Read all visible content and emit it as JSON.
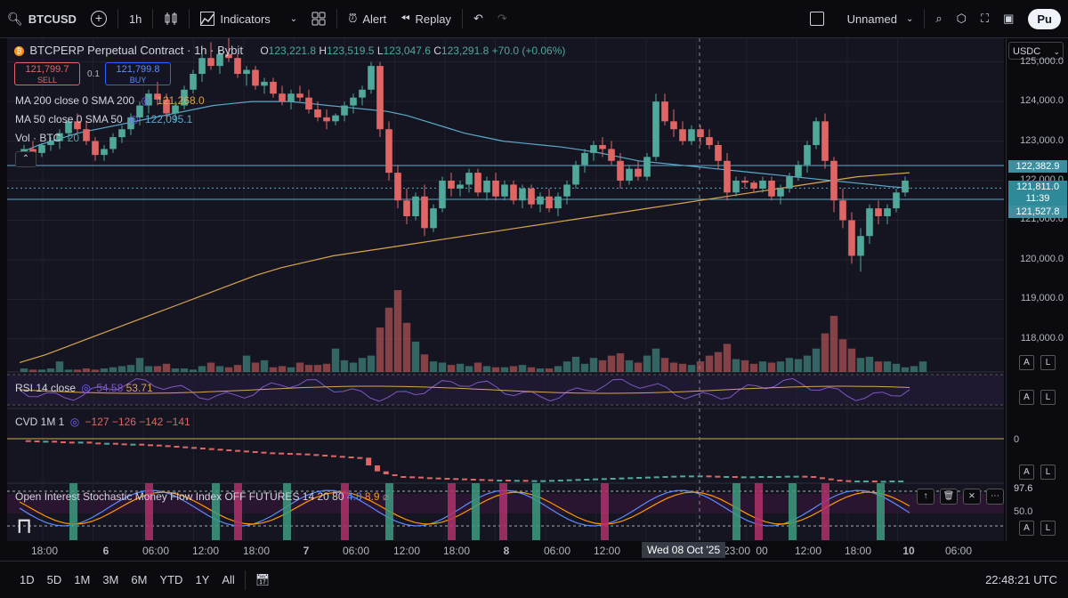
{
  "toolbar": {
    "symbol": "BTCUSD",
    "interval": "1h",
    "indicators_label": "Indicators",
    "alert_label": "Alert",
    "replay_label": "Replay",
    "layout_name": "Unnamed",
    "publish_label": "Pu"
  },
  "legend": {
    "title": "BTCPERP Perpetual Contract · 1h · Bybit",
    "o_label": "O",
    "o": "123,221.8",
    "h_label": "H",
    "h": "123,519.5",
    "l_label": "L",
    "l": "123,047.6",
    "c_label": "C",
    "c": "123,291.8",
    "change": "+70.0 (+0.06%)",
    "sell_price": "121,799.7",
    "sell_label": "SELL",
    "spread": "0.1",
    "buy_price": "121,799.8",
    "buy_label": "BUY",
    "ma200_label": "MA 200 close 0 SMA 200",
    "ma200_value": "121,268.0",
    "ma50_label": "MA 50 close 0 SMA 50",
    "ma50_value": "122,095.1",
    "vol_label": "Vol · BTC",
    "vol_value": "20"
  },
  "rsi": {
    "label": "RSI 14 close",
    "v1": "54.58",
    "v2": "53.71"
  },
  "cvd": {
    "label": "CVD 1M 1",
    "v1": "−127",
    "v2": "−126",
    "v3": "−142",
    "v4": "−141",
    "zero_label": "0"
  },
  "osc": {
    "label": "Open Interest Stochastic Money Flow Index OFF FUTURES 14 20 80",
    "v1": "4.8",
    "v2": "8.9",
    "level_high": "97.6",
    "level_mid": "50.0"
  },
  "price_axis": {
    "currency": "USDC",
    "ticks": [
      "125,000.0",
      "124,000.0",
      "123,000.0",
      "122,000.0",
      "121,000.0",
      "120,000.0",
      "119,000.0",
      "118,000.0"
    ],
    "marker_upper": "122,382.9",
    "marker_current": "121,811.0",
    "marker_countdown": "11:39",
    "marker_lower": "121,527.8"
  },
  "time_axis": {
    "labels": [
      "18:00",
      "6",
      "06:00",
      "12:00",
      "18:00",
      "7",
      "06:00",
      "12:00",
      "18:00",
      "8",
      "06:00",
      "12:00",
      "23:00",
      "00",
      "12:00",
      "18:00",
      "10",
      "06:00"
    ],
    "crosshair_label": "Wed 08 Oct '25"
  },
  "ranges": [
    "1D",
    "5D",
    "1M",
    "3M",
    "6M",
    "YTD",
    "1Y",
    "All"
  ],
  "clock": "22:48:21 UTC",
  "colors": {
    "up": "#4fa89a",
    "down": "#e06666",
    "ma200": "#d9a54f",
    "ma50": "#5aa9c9",
    "accent": "#2962ff"
  },
  "chart_data": {
    "type": "candlestick",
    "title": "BTCPERP Perpetual Contract · 1h · Bybit",
    "price_ylim": [
      117500,
      125600
    ],
    "candles": [
      [
        122700,
        122900,
        122550,
        122800
      ],
      [
        122800,
        123000,
        122650,
        122700
      ],
      [
        122700,
        122950,
        122600,
        122900
      ],
      [
        122900,
        123100,
        122750,
        123000
      ],
      [
        123000,
        123300,
        122800,
        123200
      ],
      [
        123200,
        123600,
        123050,
        123500
      ],
      [
        123500,
        123700,
        123200,
        123300
      ],
      [
        123300,
        123500,
        122900,
        123000
      ],
      [
        123000,
        123100,
        122500,
        122650
      ],
      [
        122650,
        122900,
        122500,
        122800
      ],
      [
        122800,
        123200,
        122700,
        123100
      ],
      [
        123100,
        123400,
        122950,
        123300
      ],
      [
        123300,
        123700,
        123150,
        123600
      ],
      [
        123600,
        124000,
        123400,
        123900
      ],
      [
        123900,
        124300,
        123700,
        124200
      ],
      [
        124200,
        124500,
        123900,
        124050
      ],
      [
        124050,
        124200,
        123600,
        123700
      ],
      [
        123700,
        124000,
        123500,
        123900
      ],
      [
        123900,
        124400,
        123800,
        124300
      ],
      [
        124300,
        124800,
        124200,
        124700
      ],
      [
        124700,
        125200,
        124500,
        125100
      ],
      [
        125100,
        125500,
        124800,
        124900
      ],
      [
        124900,
        125300,
        124700,
        125200
      ],
      [
        125200,
        125600,
        125000,
        125100
      ],
      [
        125100,
        125200,
        124600,
        124700
      ],
      [
        124700,
        124900,
        124400,
        124800
      ],
      [
        124800,
        124900,
        124300,
        124400
      ],
      [
        124400,
        124600,
        124200,
        124500
      ],
      [
        124500,
        124600,
        124100,
        124200
      ],
      [
        124200,
        124400,
        123900,
        124000
      ],
      [
        124000,
        124300,
        123800,
        124200
      ],
      [
        124200,
        124400,
        124000,
        124100
      ],
      [
        124100,
        124300,
        123700,
        123800
      ],
      [
        123800,
        124000,
        123500,
        123600
      ],
      [
        123600,
        123800,
        123300,
        123500
      ],
      [
        123500,
        123700,
        123400,
        123650
      ],
      [
        123650,
        124000,
        123500,
        123900
      ],
      [
        123900,
        124200,
        123700,
        124100
      ],
      [
        124100,
        124400,
        123900,
        124300
      ],
      [
        124300,
        125000,
        124200,
        124900
      ],
      [
        124900,
        125000,
        123100,
        123300
      ],
      [
        123300,
        123500,
        122000,
        122200
      ],
      [
        122200,
        122400,
        121300,
        121500
      ],
      [
        121500,
        121800,
        120900,
        121100
      ],
      [
        121100,
        121700,
        121000,
        121600
      ],
      [
        121600,
        121900,
        120600,
        120800
      ],
      [
        120800,
        121400,
        120700,
        121300
      ],
      [
        121300,
        122100,
        121200,
        122000
      ],
      [
        122000,
        122200,
        121600,
        121800
      ],
      [
        121800,
        122000,
        121600,
        121900
      ],
      [
        121900,
        122300,
        121700,
        122200
      ],
      [
        122200,
        122300,
        121600,
        121700
      ],
      [
        121700,
        122100,
        121500,
        122000
      ],
      [
        122000,
        122200,
        121500,
        121600
      ],
      [
        121600,
        122000,
        121500,
        121900
      ],
      [
        121900,
        122000,
        121400,
        121500
      ],
      [
        121500,
        121900,
        121300,
        121800
      ],
      [
        121800,
        121900,
        121300,
        121400
      ],
      [
        121400,
        121700,
        121200,
        121600
      ],
      [
        121600,
        121800,
        121200,
        121300
      ],
      [
        121300,
        121700,
        121100,
        121600
      ],
      [
        121600,
        122000,
        121400,
        121900
      ],
      [
        121900,
        122500,
        121800,
        122400
      ],
      [
        122400,
        122800,
        122200,
        122700
      ],
      [
        122700,
        123000,
        122500,
        122900
      ],
      [
        122900,
        123100,
        122600,
        122800
      ],
      [
        122800,
        123000,
        122400,
        122500
      ],
      [
        122500,
        122700,
        121800,
        122000
      ],
      [
        122000,
        122400,
        121900,
        122300
      ],
      [
        122300,
        122500,
        122000,
        122100
      ],
      [
        122100,
        122700,
        122000,
        122600
      ],
      [
        122600,
        124200,
        122500,
        124000
      ],
      [
        124000,
        124200,
        123400,
        123500
      ],
      [
        123500,
        123800,
        123100,
        123300
      ],
      [
        123300,
        123500,
        122900,
        123000
      ],
      [
        123000,
        123400,
        122900,
        123300
      ],
      [
        123300,
        123400,
        122900,
        123100
      ],
      [
        123100,
        123300,
        122800,
        122900
      ],
      [
        122900,
        123000,
        122300,
        122500
      ],
      [
        122500,
        122700,
        121500,
        121700
      ],
      [
        121700,
        122100,
        121600,
        122000
      ],
      [
        122000,
        122100,
        121800,
        121950
      ],
      [
        121950,
        122000,
        121700,
        121800
      ],
      [
        121800,
        122100,
        121700,
        122000
      ],
      [
        122000,
        122100,
        121500,
        121600
      ],
      [
        121600,
        121900,
        121400,
        121800
      ],
      [
        121800,
        122200,
        121700,
        122100
      ],
      [
        122100,
        122500,
        122000,
        122400
      ],
      [
        122400,
        123000,
        122200,
        122900
      ],
      [
        122900,
        123600,
        122800,
        123500
      ],
      [
        123500,
        123700,
        122300,
        122500
      ],
      [
        122500,
        122600,
        121200,
        121500
      ],
      [
        121500,
        121800,
        120800,
        121000
      ],
      [
        121000,
        121200,
        119900,
        120100
      ],
      [
        120100,
        120800,
        119700,
        120600
      ],
      [
        120600,
        121400,
        120400,
        121300
      ],
      [
        121300,
        121500,
        120900,
        121100
      ],
      [
        121100,
        121400,
        120900,
        121300
      ],
      [
        121300,
        121800,
        121200,
        121700
      ],
      [
        121700,
        122100,
        121600,
        122000
      ]
    ],
    "ma50": [
      122700,
      122900,
      123050,
      123200,
      123300,
      123400,
      123500,
      123600,
      123700,
      123800,
      123900,
      123950,
      124000,
      124000,
      124000,
      123950,
      123900,
      123850,
      123800,
      123750,
      123650,
      123500,
      123350,
      123200,
      123100,
      123000,
      122950,
      122900,
      122850,
      122780,
      122700,
      122600,
      122500,
      122450,
      122400,
      122350,
      122300,
      122250,
      122200,
      122150,
      122100,
      122050,
      122000,
      121950,
      121900,
      121850,
      121811
    ],
    "ma200": [
      117400,
      117600,
      117850,
      118100,
      118350,
      118600,
      118850,
      119100,
      119350,
      119600,
      119800,
      119950,
      120100,
      120200,
      120300,
      120400,
      120500,
      120600,
      120700,
      120800,
      120900,
      121000,
      121100,
      121200,
      121300,
      121400,
      121500,
      121600,
      121700,
      121800,
      121900,
      122000,
      122100,
      122150,
      122200
    ],
    "volume": [
      3,
      2,
      2,
      3,
      9,
      2,
      2,
      3,
      2,
      3,
      4,
      5,
      6,
      12,
      5,
      5,
      7,
      3,
      3,
      2,
      5,
      8,
      5,
      4,
      6,
      14,
      8,
      10,
      4,
      5,
      4,
      8,
      6,
      6,
      7,
      20,
      10,
      8,
      12,
      14,
      38,
      55,
      70,
      42,
      26,
      15,
      9,
      8,
      6,
      7,
      5,
      8,
      5,
      4,
      4,
      5,
      6,
      4,
      3,
      3,
      5,
      9,
      13,
      7,
      12,
      10,
      14,
      16,
      10,
      8,
      14,
      20,
      12,
      8,
      7,
      6,
      9,
      14,
      17,
      24,
      11,
      10,
      7,
      9,
      8,
      9,
      12,
      11,
      14,
      20,
      33,
      48,
      28,
      20,
      12,
      13,
      9,
      9,
      7,
      4,
      5,
      9
    ],
    "rsi_ylim": [
      0,
      100
    ],
    "cvd_series": [
      -5,
      -6,
      -8,
      -7,
      -9,
      -10,
      -12,
      -10,
      -13,
      -15,
      -14,
      -16,
      -18,
      -17,
      -19,
      -20,
      -22,
      -24,
      -26,
      -28,
      -30,
      -32,
      -34,
      -36,
      -38,
      -40,
      -42,
      -44,
      -46,
      -47,
      -48,
      -49,
      -50,
      -52,
      -54,
      -56,
      -58,
      -60,
      -62,
      -64,
      -90,
      -110,
      -120,
      -126,
      -127,
      -128,
      -130,
      -131,
      -132,
      -133,
      -134,
      -135,
      -136,
      -137,
      -138,
      -138,
      -139,
      -139,
      -140,
      -140,
      -140,
      -139,
      -138,
      -137,
      -136,
      -135,
      -134,
      -133,
      -132,
      -131,
      -130,
      -129,
      -128,
      -127,
      -126,
      -125,
      -124,
      -124,
      -124,
      -125,
      -126,
      -126,
      -127,
      -127,
      -127,
      -126,
      -126,
      -126,
      -125,
      -125,
      -126,
      -130,
      -134,
      -138,
      -140,
      -141,
      -141,
      -141,
      -142,
      -142,
      -141,
      -141
    ]
  }
}
